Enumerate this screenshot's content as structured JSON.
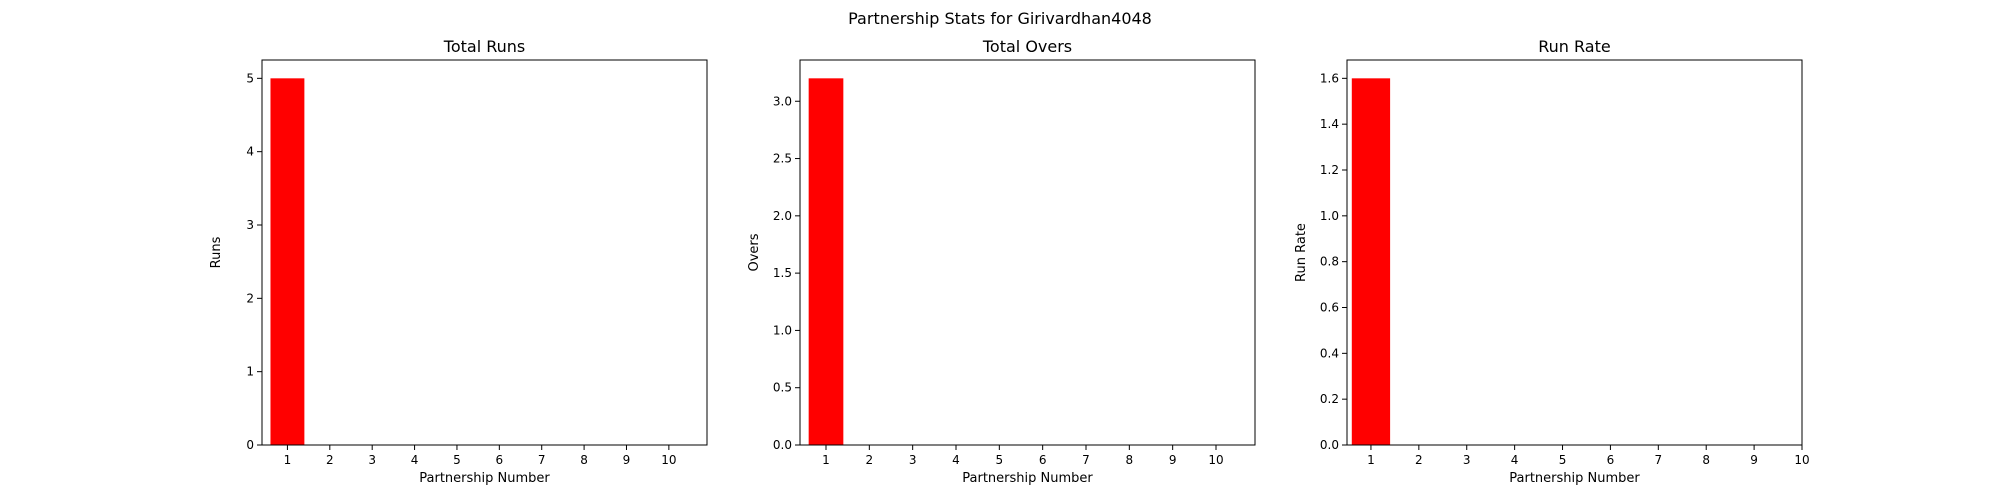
{
  "figure": {
    "suptitle": "Partnership Stats for Girivardhan4048"
  },
  "chart_data": [
    {
      "type": "bar",
      "title": "Total Runs",
      "xlabel": "Partnership Number",
      "ylabel": "Runs",
      "x": [
        1
      ],
      "values": [
        5
      ],
      "bar_color": "#ff0000",
      "xticks": [
        1,
        2,
        3,
        4,
        5,
        6,
        7,
        8,
        9,
        10
      ],
      "xlim": [
        0.4,
        10.9
      ],
      "yticks": [
        0,
        1,
        2,
        3,
        4,
        5
      ],
      "ylim": [
        0,
        5.25
      ],
      "grid": false,
      "legend": "none"
    },
    {
      "type": "bar",
      "title": "Total Overs",
      "xlabel": "Partnership Number",
      "ylabel": "Overs",
      "x": [
        1
      ],
      "values": [
        3.2
      ],
      "bar_color": "#ff0000",
      "xticks": [
        1,
        2,
        3,
        4,
        5,
        6,
        7,
        8,
        9,
        10
      ],
      "xlim": [
        0.4,
        10.9
      ],
      "yticks": [
        0.0,
        0.5,
        1.0,
        1.5,
        2.0,
        2.5,
        3.0
      ],
      "ylim": [
        0,
        3.36
      ],
      "grid": false,
      "legend": "none"
    },
    {
      "type": "bar",
      "title": "Run Rate",
      "xlabel": "Partnership Number",
      "ylabel": "Run Rate",
      "x": [
        1
      ],
      "values": [
        1.6
      ],
      "bar_color": "#ff0000",
      "xticks": [
        1,
        2,
        3,
        4,
        5,
        6,
        7,
        8,
        9,
        10
      ],
      "xlim": [
        0.5,
        10.0
      ],
      "yticks": [
        0.0,
        0.2,
        0.4,
        0.6,
        0.8,
        1.0,
        1.2,
        1.4,
        1.6
      ],
      "ylim": [
        0,
        1.68
      ],
      "grid": false,
      "legend": "none"
    }
  ]
}
